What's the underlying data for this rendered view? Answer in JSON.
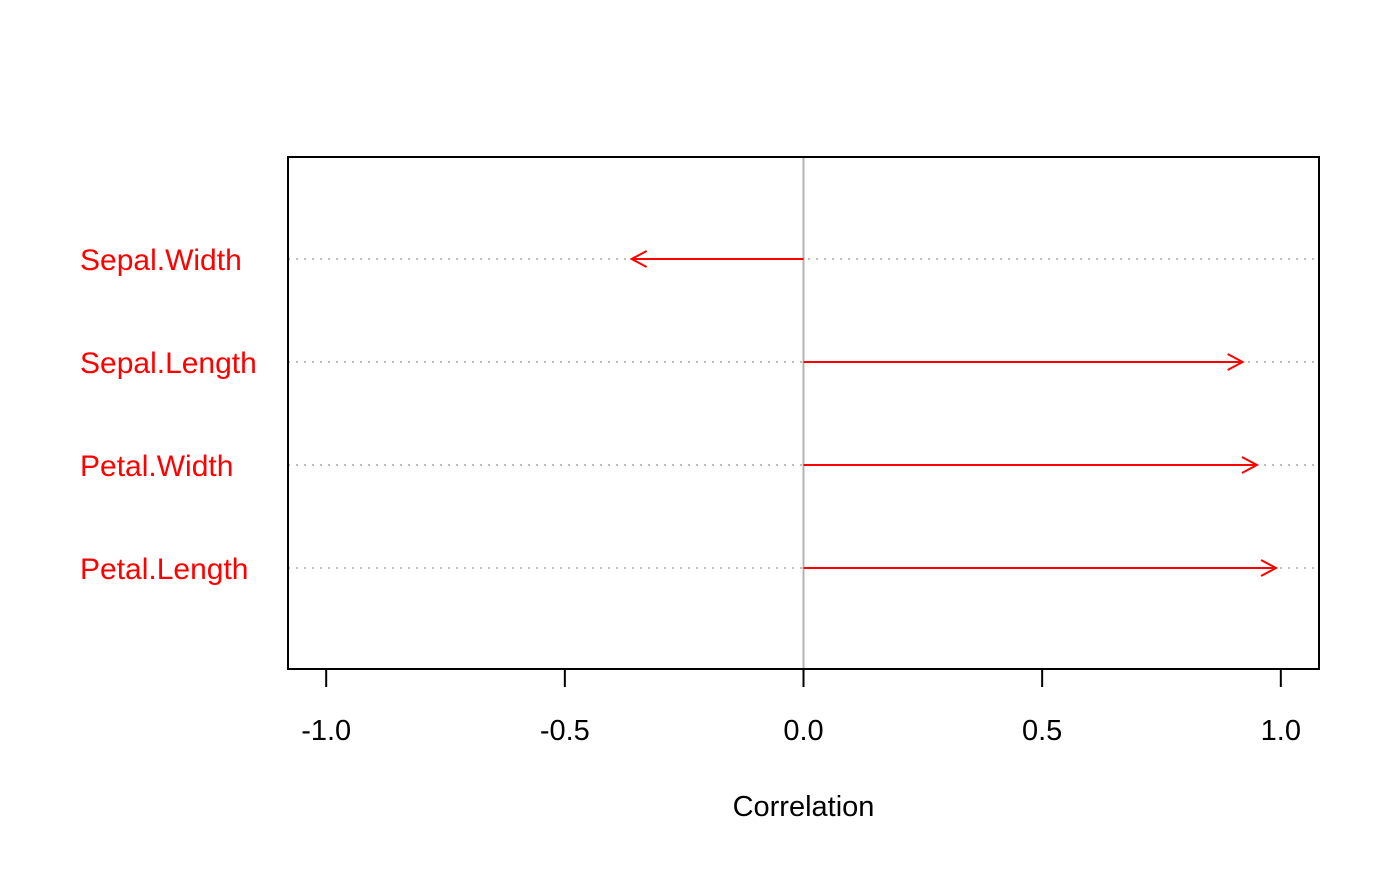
{
  "chart_data": {
    "type": "bar",
    "title": "",
    "xlabel": "Correlation",
    "ylabel": "",
    "xlim": [
      -1.08,
      1.08
    ],
    "x_ticks": [
      -1.0,
      -0.5,
      0.0,
      0.5,
      1.0
    ],
    "x_tick_labels": [
      "-1.0",
      "-0.5",
      "0.0",
      "0.5",
      "1.0"
    ],
    "categories": [
      "Sepal.Width",
      "Sepal.Length",
      "Petal.Width",
      "Petal.Length"
    ],
    "values": [
      -0.36,
      0.92,
      0.95,
      0.99
    ],
    "mark_style": "arrows from zero",
    "color": "#ff0000",
    "reference_line": 0.0,
    "reference_line_color": "#b3b3b3",
    "guide_line_color": "#bebebe",
    "grid": false,
    "legend": "none"
  }
}
